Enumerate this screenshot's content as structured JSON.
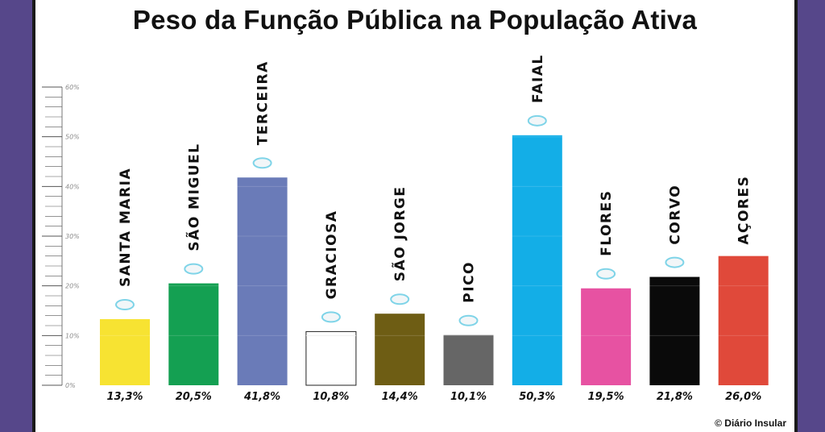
{
  "title": "Peso da Função Pública na População Ativa",
  "credit": "© Diário Insular",
  "chart_data": {
    "type": "bar",
    "title": "Peso da Função Pública na População Ativa",
    "xlabel": "",
    "ylabel": "",
    "ylim": [
      0,
      60
    ],
    "yticks": [
      "0%",
      "10%",
      "20%",
      "30%",
      "40%",
      "50%",
      "60%"
    ],
    "grid": false,
    "legend": "none",
    "categories": [
      "SANTA MARIA",
      "SÃO MIGUEL",
      "TERCEIRA",
      "GRACIOSA",
      "SÃO JORGE",
      "PICO",
      "FAIAL",
      "FLORES",
      "CORVO",
      "AÇORES"
    ],
    "values": [
      13.3,
      20.5,
      41.8,
      10.8,
      14.4,
      10.1,
      50.3,
      19.5,
      21.8,
      26.0
    ],
    "value_labels": [
      "13,3%",
      "20,5%",
      "41,8%",
      "10,8%",
      "14,4%",
      "10,1%",
      "50,3%",
      "19,5%",
      "21,8%",
      "26,0%"
    ],
    "colors": [
      "#f7e332",
      "#14a052",
      "#6a7bb8",
      "#ffffff",
      "#6e5d14",
      "#666666",
      "#13aee7",
      "#e752a2",
      "#0a0a0a",
      "#e0493a"
    ]
  }
}
